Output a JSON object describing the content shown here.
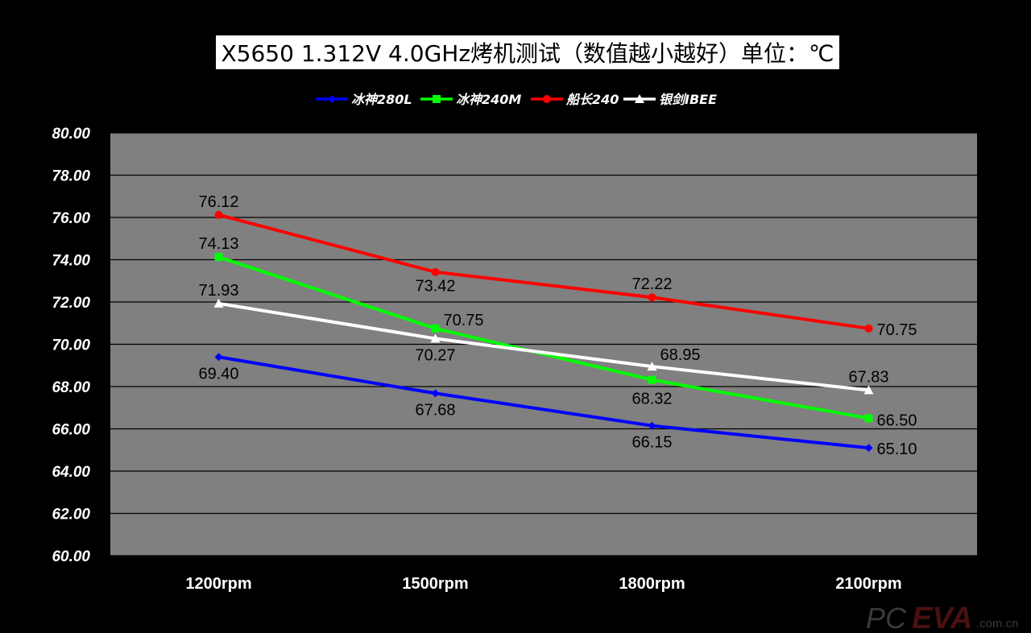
{
  "chart_data": {
    "type": "line",
    "title": "X5650 1.312V 4.0GHz烤机测试（数值越小越好）单位：℃",
    "categories": [
      "1200rpm",
      "1500rpm",
      "1800rpm",
      "2100rpm"
    ],
    "ylim": [
      60,
      80
    ],
    "yticks": [
      "80.00",
      "78.00",
      "76.00",
      "74.00",
      "72.00",
      "70.00",
      "68.00",
      "66.00",
      "64.00",
      "62.00",
      "60.00"
    ],
    "grid": true,
    "legend_position": "top",
    "series": [
      {
        "name": "冰神280L",
        "color": "#0000ff",
        "marker": "diamond",
        "values": [
          69.4,
          67.68,
          66.15,
          65.1
        ],
        "labels": [
          "69.40",
          "67.68",
          "66.15",
          "65.10"
        ]
      },
      {
        "name": "冰神240M",
        "color": "#00ff00",
        "marker": "square",
        "values": [
          74.13,
          70.75,
          68.32,
          66.5
        ],
        "labels": [
          "74.13",
          "70.75",
          "68.32",
          "66.50"
        ]
      },
      {
        "name": "船长240",
        "color": "#ff0000",
        "marker": "circle",
        "values": [
          76.12,
          73.42,
          72.22,
          70.75
        ],
        "labels": [
          "76.12",
          "73.42",
          "72.22",
          "70.75"
        ]
      },
      {
        "name": "银剑IBEE",
        "color": "#ffffff",
        "marker": "triangle",
        "values": [
          71.93,
          70.27,
          68.95,
          67.83
        ],
        "labels": [
          "71.93",
          "70.27",
          "68.95",
          "67.83"
        ]
      }
    ],
    "plot_background": "#808080"
  },
  "watermark": {
    "pc": "PC",
    "eva": "EVA",
    "com": ".com.cn"
  }
}
